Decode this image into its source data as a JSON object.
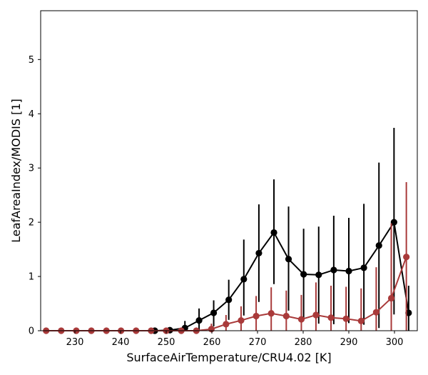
{
  "chart_data": {
    "type": "line",
    "xlabel": "SurfaceAirTemperature/CRU4.02 [K]",
    "ylabel": "LeafAreaIndex/MODIS [1]",
    "xlim": [
      222.5,
      305
    ],
    "ylim": [
      0,
      5.9
    ],
    "xticks": [
      230,
      240,
      250,
      260,
      270,
      280,
      290,
      300
    ],
    "yticks": [
      0,
      1,
      2,
      3,
      4,
      5
    ],
    "grid": false,
    "legend": "none",
    "series": [
      {
        "color": "#000000",
        "marker": "circle",
        "points": [
          {
            "x": 247.5,
            "y": 0.0,
            "err": [
              0.0,
              0.0
            ]
          },
          {
            "x": 250.8,
            "y": 0.01,
            "err": [
              0.01,
              0.03
            ]
          },
          {
            "x": 254.1,
            "y": 0.05,
            "err": [
              0.05,
              0.13
            ]
          },
          {
            "x": 257.2,
            "y": 0.19,
            "err": [
              0.19,
              0.22
            ]
          },
          {
            "x": 260.4,
            "y": 0.33,
            "err": [
              0.25,
              0.23
            ]
          },
          {
            "x": 263.7,
            "y": 0.57,
            "err": [
              0.37,
              0.37
            ]
          },
          {
            "x": 267.0,
            "y": 0.95,
            "err": [
              0.67,
              0.73
            ]
          },
          {
            "x": 270.3,
            "y": 1.43,
            "err": [
              0.9,
              0.9
            ]
          },
          {
            "x": 273.6,
            "y": 1.81,
            "err": [
              0.95,
              0.98
            ]
          },
          {
            "x": 276.8,
            "y": 1.32,
            "err": [
              0.95,
              0.97
            ]
          },
          {
            "x": 280.1,
            "y": 1.04,
            "err": [
              0.8,
              0.84
            ]
          },
          {
            "x": 283.4,
            "y": 1.03,
            "err": [
              0.9,
              0.89
            ]
          },
          {
            "x": 286.7,
            "y": 1.12,
            "err": [
              1.0,
              1.0
            ]
          },
          {
            "x": 290.0,
            "y": 1.1,
            "err": [
              0.96,
              0.98
            ]
          },
          {
            "x": 293.3,
            "y": 1.16,
            "err": [
              1.05,
              1.18
            ]
          },
          {
            "x": 296.6,
            "y": 1.57,
            "err": [
              1.52,
              1.53
            ]
          },
          {
            "x": 299.9,
            "y": 2.0,
            "err": [
              1.7,
              1.74
            ]
          },
          {
            "x": 303.1,
            "y": 0.33,
            "err": [
              0.33,
              0.5
            ]
          }
        ]
      },
      {
        "color": "#a93a3a",
        "marker": "circle",
        "points": [
          {
            "x": 223.7,
            "y": 0.0,
            "err": [
              0.0,
              0.0
            ]
          },
          {
            "x": 227.0,
            "y": 0.0,
            "err": [
              0.0,
              0.0
            ]
          },
          {
            "x": 230.3,
            "y": 0.0,
            "err": [
              0.0,
              0.0
            ]
          },
          {
            "x": 233.6,
            "y": 0.0,
            "err": [
              0.0,
              0.0
            ]
          },
          {
            "x": 236.9,
            "y": 0.0,
            "err": [
              0.0,
              0.0
            ]
          },
          {
            "x": 240.1,
            "y": 0.0,
            "err": [
              0.0,
              0.0
            ]
          },
          {
            "x": 243.4,
            "y": 0.0,
            "err": [
              0.0,
              0.0
            ]
          },
          {
            "x": 246.7,
            "y": 0.0,
            "err": [
              0.0,
              0.0
            ]
          },
          {
            "x": 250.0,
            "y": 0.0,
            "err": [
              0.0,
              0.0
            ]
          },
          {
            "x": 253.3,
            "y": 0.0,
            "err": [
              0.0,
              0.0
            ]
          },
          {
            "x": 256.6,
            "y": 0.0,
            "err": [
              0.0,
              0.02
            ]
          },
          {
            "x": 259.9,
            "y": 0.03,
            "err": [
              0.03,
              0.1
            ]
          },
          {
            "x": 263.1,
            "y": 0.12,
            "err": [
              0.12,
              0.17
            ]
          },
          {
            "x": 266.4,
            "y": 0.19,
            "err": [
              0.19,
              0.26
            ]
          },
          {
            "x": 269.7,
            "y": 0.27,
            "err": [
              0.27,
              0.37
            ]
          },
          {
            "x": 273.0,
            "y": 0.32,
            "err": [
              0.32,
              0.48
            ]
          },
          {
            "x": 276.3,
            "y": 0.27,
            "err": [
              0.27,
              0.47
            ]
          },
          {
            "x": 279.6,
            "y": 0.21,
            "err": [
              0.21,
              0.45
            ]
          },
          {
            "x": 282.8,
            "y": 0.29,
            "err": [
              0.29,
              0.6
            ]
          },
          {
            "x": 286.1,
            "y": 0.24,
            "err": [
              0.24,
              0.59
            ]
          },
          {
            "x": 289.4,
            "y": 0.22,
            "err": [
              0.22,
              0.59
            ]
          },
          {
            "x": 292.7,
            "y": 0.18,
            "err": [
              0.18,
              0.6
            ]
          },
          {
            "x": 296.0,
            "y": 0.34,
            "err": [
              0.34,
              0.83
            ]
          },
          {
            "x": 299.3,
            "y": 0.6,
            "err": [
              0.6,
              1.38
            ]
          },
          {
            "x": 302.6,
            "y": 1.36,
            "err": [
              1.36,
              1.38
            ]
          }
        ]
      }
    ]
  }
}
